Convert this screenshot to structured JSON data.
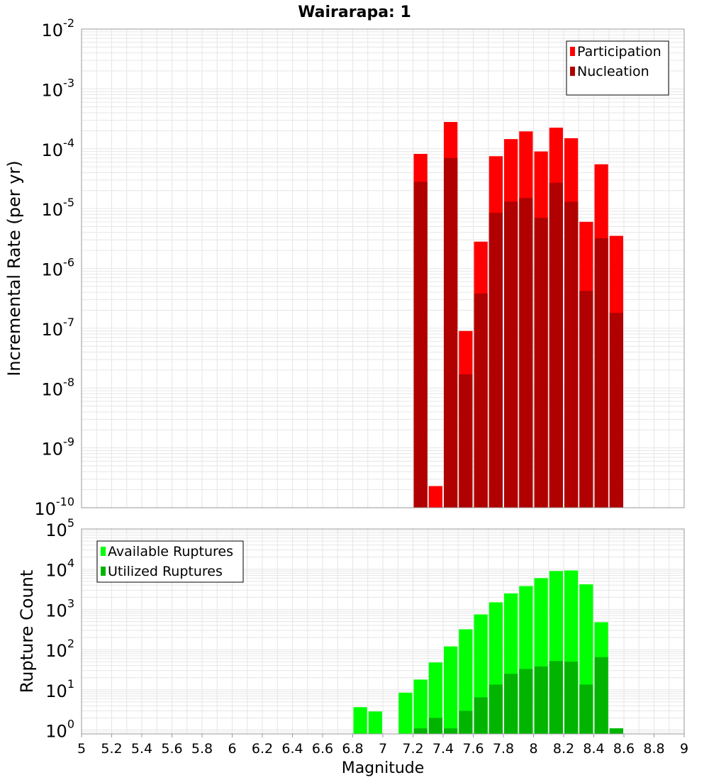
{
  "title": "Wairarapa: 1",
  "xlabel": "Magnitude",
  "colors": {
    "participation": "#ff0000",
    "nucleation": "#b00000",
    "available": "#00ff00",
    "utilized": "#00b400",
    "grid": "#e6e6e6",
    "frame": "#999999"
  },
  "chart_data": [
    {
      "type": "bar",
      "ylabel": "Incremental Rate (per yr)",
      "yscale": "log",
      "xlim": [
        5,
        9
      ],
      "ylim": [
        1e-10,
        0.01
      ],
      "grid": true,
      "legend_position": "top-right",
      "y_ticks": [
        {
          "base": "10",
          "exp": "-10"
        },
        {
          "base": "10",
          "exp": "-9"
        },
        {
          "base": "10",
          "exp": "-8"
        },
        {
          "base": "10",
          "exp": "-7"
        },
        {
          "base": "10",
          "exp": "-6"
        },
        {
          "base": "10",
          "exp": "-5"
        },
        {
          "base": "10",
          "exp": "-4"
        },
        {
          "base": "10",
          "exp": "-3"
        },
        {
          "base": "10",
          "exp": "-2"
        }
      ],
      "bin_width": 0.1,
      "x": [
        7.25,
        7.35,
        7.45,
        7.55,
        7.65,
        7.75,
        7.85,
        7.95,
        8.05,
        8.15,
        8.25,
        8.35,
        8.45,
        8.55
      ],
      "series": [
        {
          "name": "Participation",
          "color_key": "participation",
          "values": [
            8.2e-05,
            2.3e-10,
            0.00028,
            9e-08,
            2.8e-06,
            7.5e-05,
            0.000145,
            0.000195,
            9e-05,
            0.000225,
            0.00015,
            6e-06,
            5.5e-05,
            3.5e-06
          ]
        },
        {
          "name": "Nucleation",
          "color_key": "nucleation",
          "values": [
            2.8e-05,
            null,
            7e-05,
            1.7e-08,
            3.8e-07,
            8.5e-06,
            1.3e-05,
            1.5e-05,
            7e-06,
            2.7e-05,
            1.3e-05,
            4.2e-07,
            3.2e-06,
            1.8e-07
          ]
        }
      ]
    },
    {
      "type": "bar",
      "ylabel": "Rupture Count",
      "yscale": "log",
      "xlim": [
        5,
        9
      ],
      "ylim": [
        0.8,
        100000
      ],
      "grid": true,
      "legend_position": "top-left",
      "y_ticks": [
        {
          "base": "10",
          "exp": "0"
        },
        {
          "base": "10",
          "exp": "1"
        },
        {
          "base": "10",
          "exp": "2"
        },
        {
          "base": "10",
          "exp": "3"
        },
        {
          "base": "10",
          "exp": "4"
        },
        {
          "base": "10",
          "exp": "5"
        }
      ],
      "bin_width": 0.1,
      "x": [
        6.85,
        6.95,
        7.15,
        7.25,
        7.35,
        7.45,
        7.55,
        7.65,
        7.75,
        7.85,
        7.95,
        8.05,
        8.15,
        8.25,
        8.35,
        8.45,
        8.55
      ],
      "series": [
        {
          "name": "Available Ruptures",
          "color_key": "available",
          "values": [
            3.7,
            2.9,
            8.5,
            18,
            48,
            120,
            320,
            750,
            1500,
            2500,
            3800,
            6000,
            9000,
            9300,
            4200,
            480,
            1.1
          ]
        },
        {
          "name": "Utilized Ruptures",
          "color_key": "utilized",
          "values": [
            null,
            null,
            null,
            1.1,
            2.0,
            1.1,
            3.0,
            6.5,
            13.5,
            25,
            33,
            38,
            52,
            50,
            13.5,
            65,
            1.1
          ]
        }
      ]
    }
  ],
  "x_ticks": [
    "5",
    "5.2",
    "5.4",
    "5.6",
    "5.8",
    "6",
    "6.2",
    "6.4",
    "6.6",
    "6.8",
    "7",
    "7.2",
    "7.4",
    "7.6",
    "7.8",
    "8",
    "8.2",
    "8.4",
    "8.6",
    "8.8",
    "9"
  ],
  "x_tick_values": [
    5,
    5.2,
    5.4,
    5.6,
    5.8,
    6,
    6.2,
    6.4,
    6.6,
    6.8,
    7,
    7.2,
    7.4,
    7.6,
    7.8,
    8,
    8.2,
    8.4,
    8.6,
    8.8,
    9
  ]
}
